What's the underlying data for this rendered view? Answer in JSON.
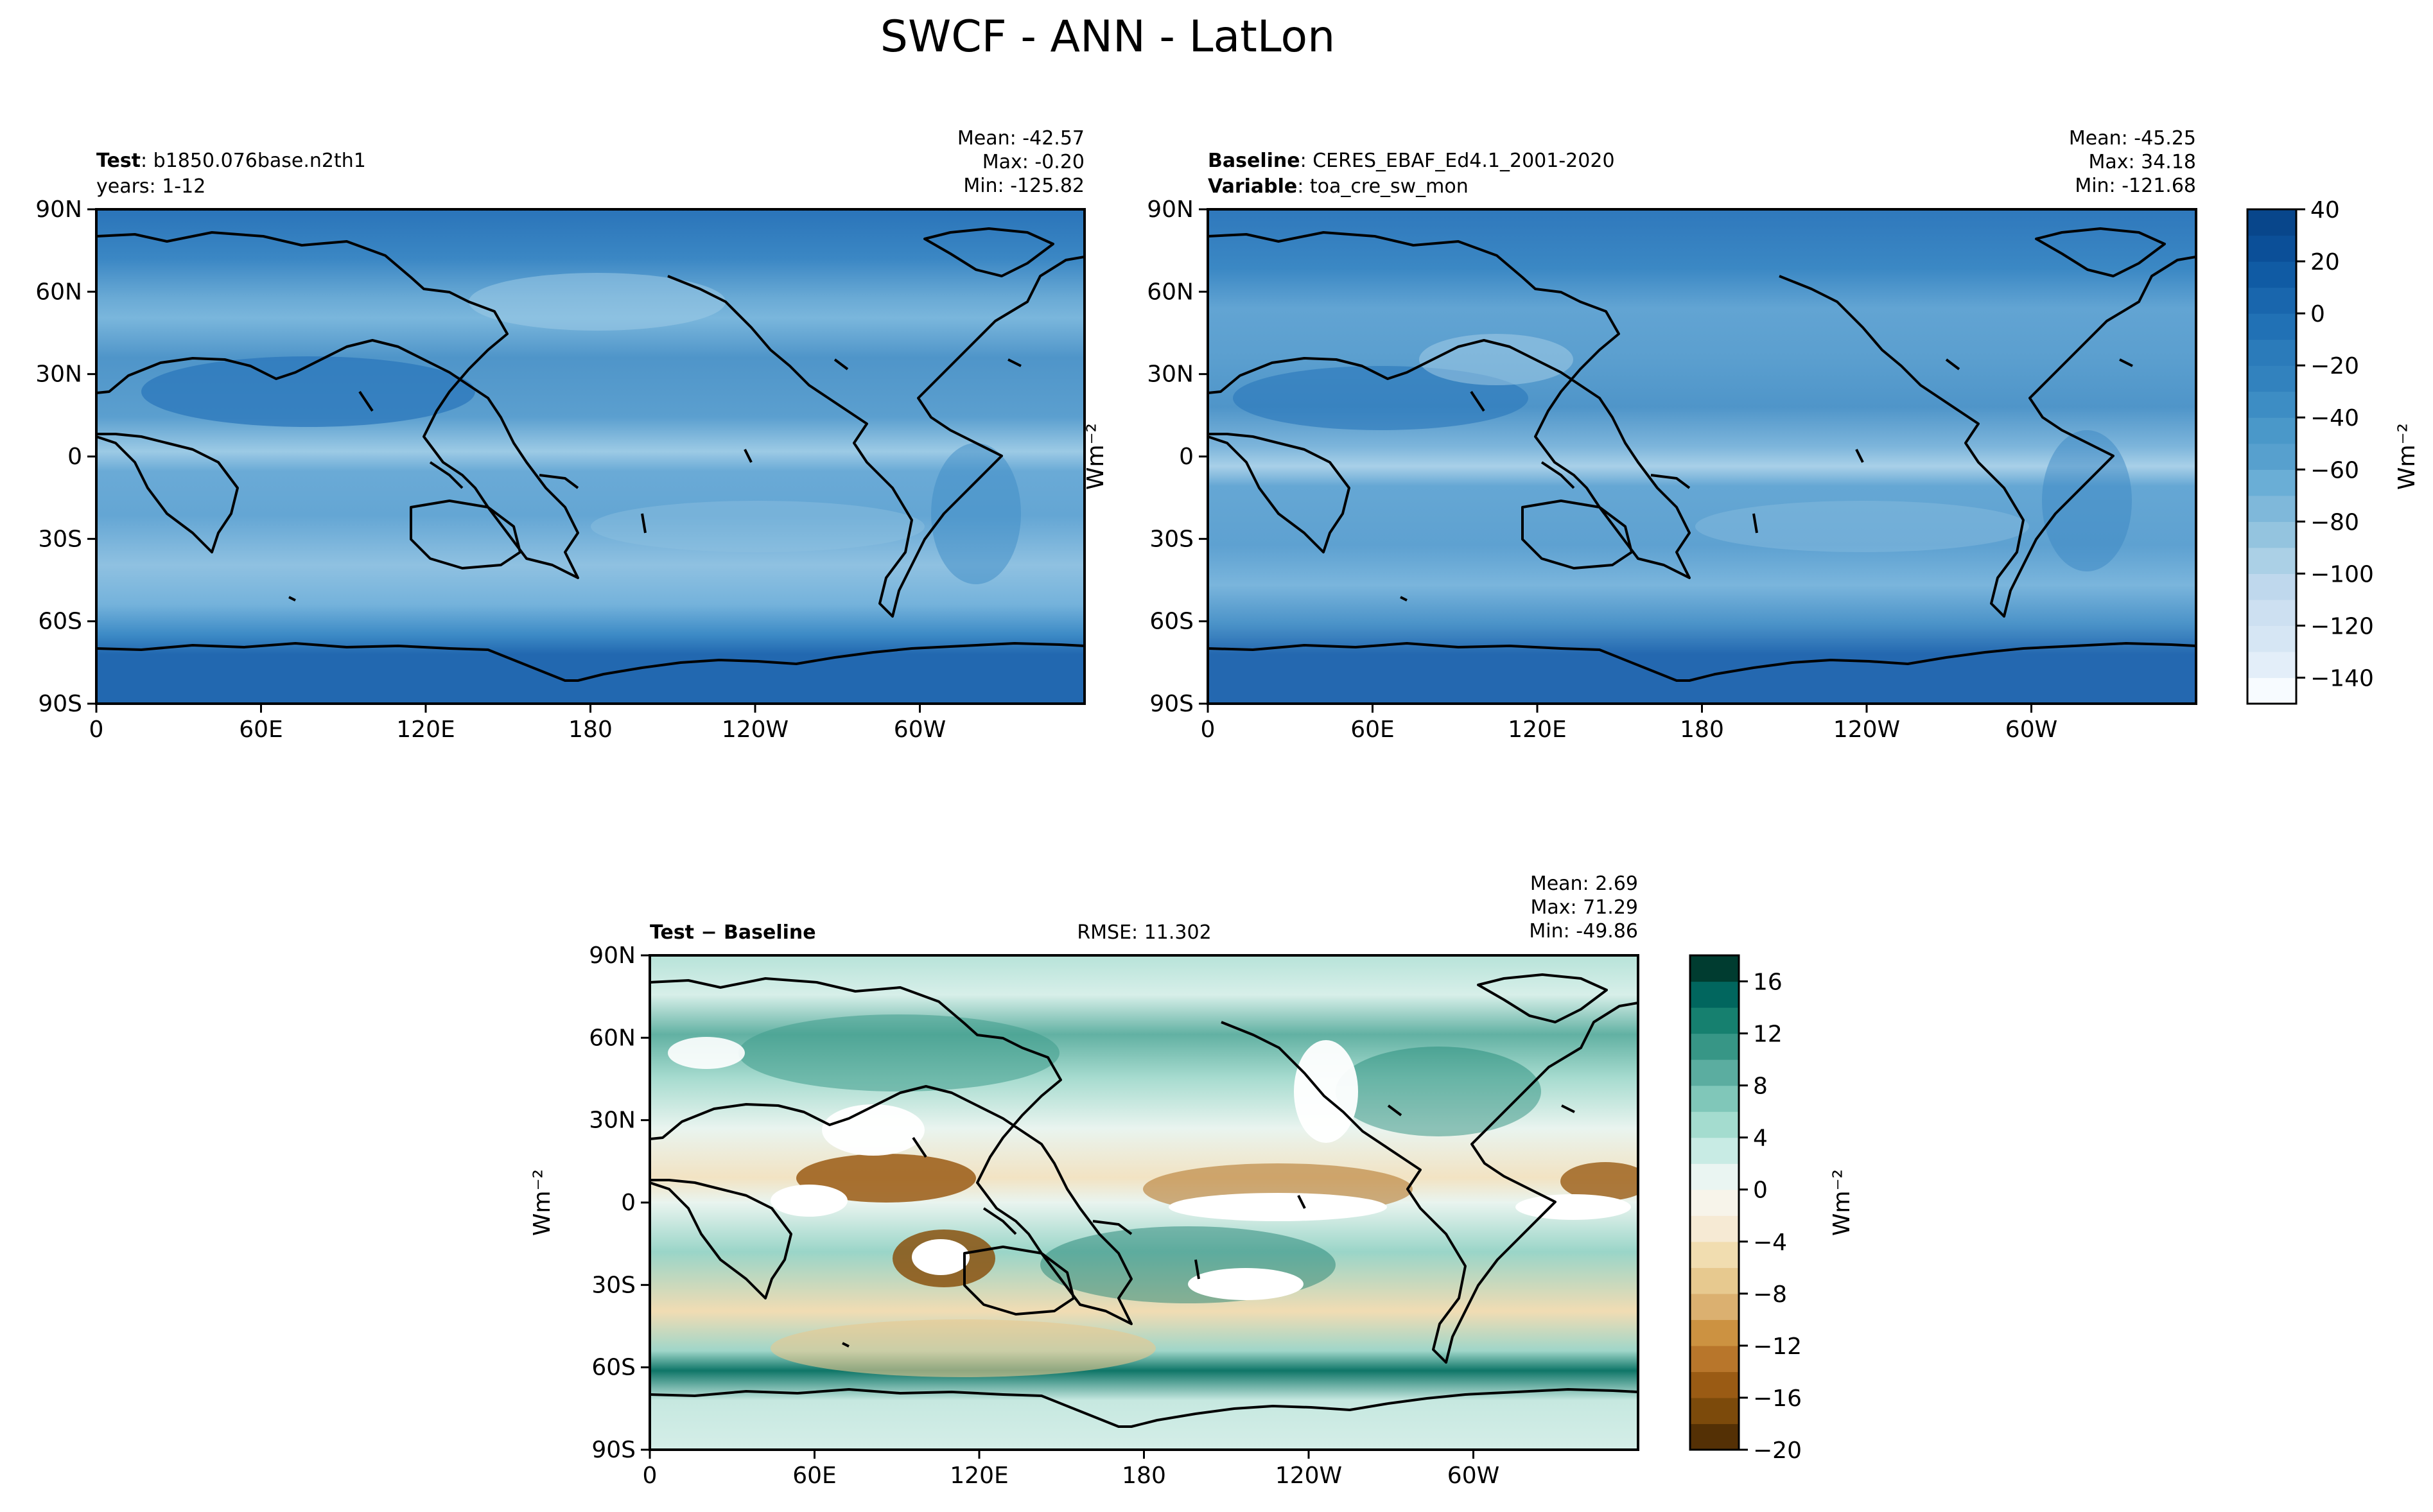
{
  "figure": {
    "title": "SWCF - ANN - LatLon"
  },
  "chart_data": [
    {
      "type": "heatmap",
      "panel": "test",
      "header_left": [
        {
          "bold": "Test",
          "text": ": b1850.076base.n2th1"
        },
        {
          "bold": "",
          "text": "years: 1-12"
        }
      ],
      "stats": [
        "Mean: -42.57",
        "Max: -0.20",
        "Min: -125.82"
      ],
      "x_ticks": [
        "0",
        "60E",
        "120E",
        "180",
        "120W",
        "60W"
      ],
      "x_tick_values": [
        0,
        60,
        120,
        180,
        240,
        300
      ],
      "xlim": [
        0,
        360
      ],
      "y_ticks": [
        "90N",
        "60N",
        "30N",
        "0",
        "30S",
        "60S",
        "90S"
      ],
      "y_tick_values": [
        90,
        60,
        30,
        0,
        -30,
        -60,
        -90
      ],
      "ylim": [
        -90,
        90
      ],
      "mean": -42.57,
      "max": -0.2,
      "min": -125.82
    },
    {
      "type": "heatmap",
      "panel": "baseline",
      "header_left": [
        {
          "bold": "Baseline",
          "text": ": CERES_EBAF_Ed4.1_2001-2020"
        },
        {
          "bold": "Variable",
          "text": ": toa_cre_sw_mon"
        }
      ],
      "stats": [
        "Mean: -45.25",
        "Max: 34.18",
        "Min: -121.68"
      ],
      "x_ticks": [
        "0",
        "60E",
        "120E",
        "180",
        "120W",
        "60W"
      ],
      "x_tick_values": [
        0,
        60,
        120,
        180,
        240,
        300
      ],
      "xlim": [
        0,
        360
      ],
      "y_ticks": [
        "90N",
        "60N",
        "30N",
        "0",
        "30S",
        "60S",
        "90S"
      ],
      "y_tick_values": [
        90,
        60,
        30,
        0,
        -30,
        -60,
        -90
      ],
      "ylim": [
        -90,
        90
      ],
      "ylabel": "Wm⁻²",
      "mean": -45.25,
      "max": 34.18,
      "min": -121.68
    },
    {
      "type": "heatmap",
      "panel": "difference",
      "header_left": [
        {
          "bold": "Test − Baseline",
          "text": ""
        }
      ],
      "header_center": "RMSE: 11.302",
      "stats": [
        "Mean:  2.69",
        "Max: 71.29",
        "Min: -49.86"
      ],
      "x_ticks": [
        "0",
        "60E",
        "120E",
        "180",
        "120W",
        "60W"
      ],
      "x_tick_values": [
        0,
        60,
        120,
        180,
        240,
        300
      ],
      "xlim": [
        0,
        360
      ],
      "y_ticks": [
        "90N",
        "60N",
        "30N",
        "0",
        "30S",
        "60S",
        "90S"
      ],
      "y_tick_values": [
        90,
        60,
        30,
        0,
        -30,
        -60,
        -90
      ],
      "ylim": [
        -90,
        90
      ],
      "ylabel": "Wm⁻²",
      "rmse": 11.302,
      "mean": 2.69,
      "max": 71.29,
      "min": -49.86
    }
  ],
  "colorbars": [
    {
      "panel": "test-baseline-shared",
      "label": "Wm⁻²",
      "levels": [
        -150,
        -140,
        -130,
        -120,
        -110,
        -100,
        -90,
        -80,
        -70,
        -60,
        -50,
        -40,
        -30,
        -20,
        -10,
        0,
        10,
        20,
        30,
        40
      ],
      "colors": [
        "#f7fbff",
        "#e3eef9",
        "#d6e6f4",
        "#cde0f1",
        "#bfd8ed",
        "#abd0e6",
        "#94c4df",
        "#7fb8da",
        "#6aaed6",
        "#57a0ce",
        "#4a98c9",
        "#3d8dc4",
        "#3282be",
        "#2b7bba",
        "#2171b5",
        "#1966ad",
        "#105ba4",
        "#0b4f98",
        "#08468b"
      ],
      "tick_labels": [
        "40",
        "20",
        "0",
        "−20",
        "−40",
        "−60",
        "−80",
        "−100",
        "−120",
        "−140"
      ],
      "tick_values": [
        40,
        20,
        0,
        -20,
        -40,
        -60,
        -80,
        -100,
        -120,
        -140
      ]
    },
    {
      "panel": "difference",
      "label": "Wm⁻²",
      "levels": [
        -20,
        -18,
        -16,
        -14,
        -12,
        -10,
        -8,
        -6,
        -4,
        -2,
        0,
        2,
        4,
        6,
        8,
        10,
        12,
        14,
        16,
        18
      ],
      "colors": [
        "#543005",
        "#7c4a0b",
        "#9a5b14",
        "#b8762b",
        "#cc9241",
        "#dbb070",
        "#e7c98f",
        "#f1ddb0",
        "#f6ead4",
        "#f7f4ea",
        "#eaf5f2",
        "#c8ebe4",
        "#a4dccf",
        "#80c7b9",
        "#5bada0",
        "#379686",
        "#16806f",
        "#01665e",
        "#003c30"
      ],
      "tick_labels": [
        "16",
        "12",
        "8",
        "4",
        "0",
        "−4",
        "−8",
        "−12",
        "−16",
        "−20"
      ],
      "tick_values": [
        16,
        12,
        8,
        4,
        0,
        -4,
        -8,
        -12,
        -16,
        -20
      ]
    }
  ]
}
